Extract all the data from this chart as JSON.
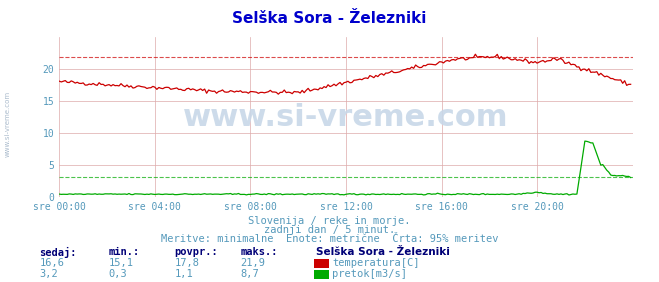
{
  "title": "Selška Sora - Železniki",
  "title_color": "#0000cc",
  "bg_color": "#ffffff",
  "plot_bg_color": "#ffffff",
  "grid_color": "#ddaaaa",
  "x_label_color": "#5599bb",
  "y_label_color": "#5599bb",
  "watermark": "www.si-vreme.com",
  "sidebar_text": "www.si-vreme.com",
  "xlim": [
    0,
    288
  ],
  "ylim": [
    0,
    25
  ],
  "yticks": [
    0,
    5,
    10,
    15,
    20
  ],
  "xtick_labels": [
    "sre 00:00",
    "sre 04:00",
    "sre 08:00",
    "sre 12:00",
    "sre 16:00",
    "sre 20:00"
  ],
  "xtick_positions": [
    0,
    48,
    96,
    144,
    192,
    240
  ],
  "temp_color": "#cc0000",
  "flow_color": "#00aa00",
  "temp_max_line": 21.9,
  "flow_avg_line": 3.2,
  "subtitle_lines": [
    "Slovenija / reke in morje.",
    "zadnji dan / 5 minut.",
    "Meritve: minimalne  Enote: metrične  Črta: 95% meritev"
  ],
  "subtitle_color": "#5599bb",
  "table_header": [
    "sedaj:",
    "min.:",
    "povpr.:",
    "maks.:"
  ],
  "table_col1": [
    "16,6",
    "3,2"
  ],
  "table_col2": [
    "15,1",
    "0,3"
  ],
  "table_col3": [
    "17,8",
    "1,1"
  ],
  "table_col4": [
    "21,9",
    "8,7"
  ],
  "legend_title": "Selška Sora - Železniki",
  "legend_labels": [
    "temperatura[C]",
    "pretok[m3/s]"
  ],
  "legend_colors": [
    "#cc0000",
    "#00aa00"
  ],
  "table_color": "#5599bb",
  "table_bold_color": "#000077"
}
